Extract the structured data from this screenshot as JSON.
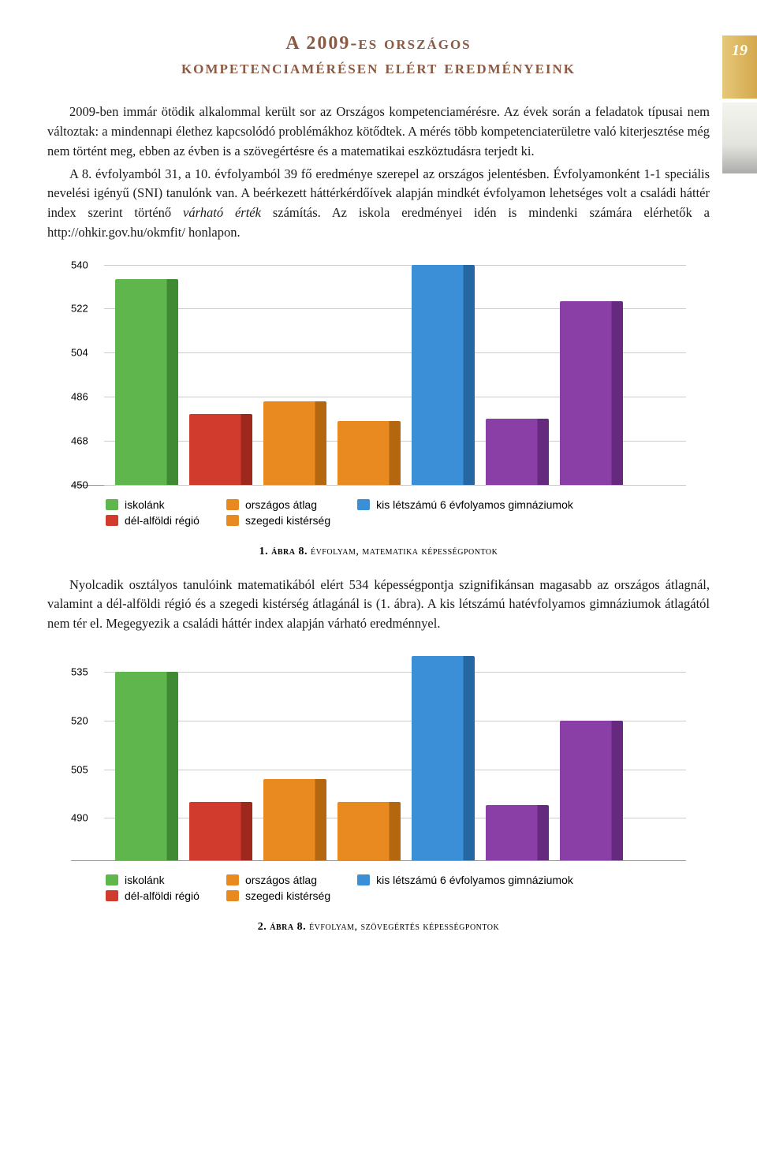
{
  "page_number": "19",
  "title_line1": "A 2009-es országos",
  "title_line2": "kompetenciamérésen elért eredményeink",
  "paragraph1": "2009-ben immár ötödik alkalommal került sor az Országos kompetenciamérésre. Az évek során a feladatok típusai nem változtak: a mindennapi élethez kapcsolódó problémákhoz kötődtek. A mérés több kompetenciaterületre való kiterjesztése még nem történt meg, ebben az évben is a szövegértésre és a matematikai eszköztudásra terjedt ki.",
  "paragraph1b": "A 8. évfolyamból 31, a 10. évfolyamból 39 fő eredménye szerepel az országos jelentésben. Évfolyamonként 1-1 speciális nevelési igényű (SNI) tanulónk van. A beérkezett háttérkérdőívek alapján mindkét évfolyamon lehetséges volt a családi háttér index szerint történő ",
  "paragraph1b_ital": "várható érték",
  "paragraph1b_cont": " számítás. Az iskola eredményei idén is mindenki számára elérhetők a http://ohkir.gov.hu/okmfit/ honlapon.",
  "chart1": {
    "ymin": 450,
    "ymax": 540,
    "yticks": [
      540,
      522,
      504,
      486,
      468,
      450
    ],
    "bars": [
      {
        "value": 534,
        "color": "#5fb64c",
        "shadow": "#3f8a32"
      },
      {
        "value": 479,
        "color": "#d13b2e",
        "shadow": "#9f281e"
      },
      {
        "value": 484,
        "color": "#e88a1f",
        "shadow": "#b56710"
      },
      {
        "value": 476,
        "color": "#e88a1f",
        "shadow": "#b56710"
      },
      {
        "value": 540,
        "color": "#3a8fd6",
        "shadow": "#2467a3"
      },
      {
        "value": 477,
        "color": "#8a3fa6",
        "shadow": "#652a7d"
      },
      {
        "value": 525,
        "color": "#8a3fa6",
        "shadow": "#652a7d"
      }
    ]
  },
  "legend": {
    "g1a": "iskolánk",
    "g1a_color": "#5fb64c",
    "g1b": "dél-alföldi régió",
    "g1b_color": "#d13b2e",
    "g2a": "országos átlag",
    "g2a_color": "#e88a1f",
    "g2b": "szegedi kistérség",
    "g2b_color": "#e88a1f",
    "g3a": "kis létszámú 6 évfolyamos gimnáziumok",
    "g3a_color": "#3a8fd6"
  },
  "caption1_bold": "1. ábra  8.",
  "caption1_rest": " évfolyam, matematika képességpontok",
  "paragraph2": "Nyolcadik osztályos tanulóink matematikából elért 534 képességpontja szignifikánsan magasabb az országos átlagnál, valamint a dél-alföldi régió és a szegedi kistérség átlagánál is (1. ábra). A kis létszámú hatévfolyamos gimnáziumok átlagától nem tér el. Megegyezik a családi háttér index alapján várható eredménnyel.",
  "chart2": {
    "ymin": 477,
    "ymax": 540,
    "yticks": [
      535,
      520,
      505,
      490
    ],
    "bars": [
      {
        "value": 535,
        "color": "#5fb64c",
        "shadow": "#3f8a32"
      },
      {
        "value": 495,
        "color": "#d13b2e",
        "shadow": "#9f281e"
      },
      {
        "value": 502,
        "color": "#e88a1f",
        "shadow": "#b56710"
      },
      {
        "value": 495,
        "color": "#e88a1f",
        "shadow": "#b56710"
      },
      {
        "value": 540,
        "color": "#3a8fd6",
        "shadow": "#2467a3"
      },
      {
        "value": 494,
        "color": "#8a3fa6",
        "shadow": "#652a7d"
      },
      {
        "value": 520,
        "color": "#8a3fa6",
        "shadow": "#652a7d"
      }
    ]
  },
  "caption2_bold": "2. ábra  8.",
  "caption2_rest": " évfolyam, szövegértés képességpontok"
}
